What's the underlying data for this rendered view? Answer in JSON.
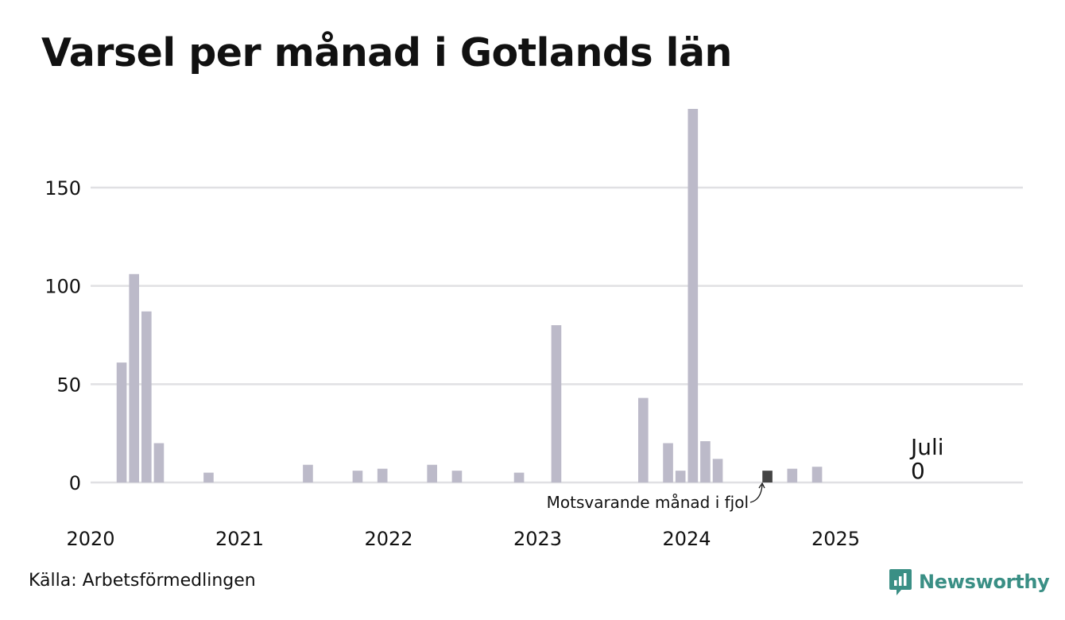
{
  "title": "Varsel per månad i Gotlands län",
  "source": "Källa: Arbetsförmedlingen",
  "brand": "Newsworthy",
  "colors": {
    "bar": "#bcbac9",
    "highlight": "#444444",
    "grid": "#e0e0e3",
    "brand": "#3a8f85"
  },
  "chart_data": {
    "type": "bar",
    "title": "Varsel per månad i Gotlands län",
    "x_start": "2020-01",
    "x_end": "2025-12",
    "ylim": [
      0,
      190
    ],
    "yticks": [
      0,
      50,
      100,
      150
    ],
    "xticks": [
      "2020",
      "2021",
      "2022",
      "2023",
      "2024",
      "2025"
    ],
    "grid": true,
    "series": [
      {
        "points": [
          {
            "x": "2020-03",
            "y": 61
          },
          {
            "x": "2020-04",
            "y": 106
          },
          {
            "x": "2020-05",
            "y": 87
          },
          {
            "x": "2020-06",
            "y": 20
          },
          {
            "x": "2020-10",
            "y": 5
          },
          {
            "x": "2021-06",
            "y": 9
          },
          {
            "x": "2021-10",
            "y": 6
          },
          {
            "x": "2021-12",
            "y": 7
          },
          {
            "x": "2022-04",
            "y": 9
          },
          {
            "x": "2022-06",
            "y": 6
          },
          {
            "x": "2022-11",
            "y": 5
          },
          {
            "x": "2023-02",
            "y": 80
          },
          {
            "x": "2023-09",
            "y": 43
          },
          {
            "x": "2023-11",
            "y": 20
          },
          {
            "x": "2023-12",
            "y": 6
          },
          {
            "x": "2024-01",
            "y": 190
          },
          {
            "x": "2024-02",
            "y": 21
          },
          {
            "x": "2024-03",
            "y": 12
          },
          {
            "x": "2024-07",
            "y": 6,
            "highlight": true
          },
          {
            "x": "2024-09",
            "y": 7
          },
          {
            "x": "2024-11",
            "y": 8
          },
          {
            "x": "2025-07",
            "y": 0
          }
        ]
      }
    ],
    "annotations": {
      "previous_year": "Motsvarande månad i fjol",
      "current_month": "Juli",
      "current_value": "0"
    }
  }
}
